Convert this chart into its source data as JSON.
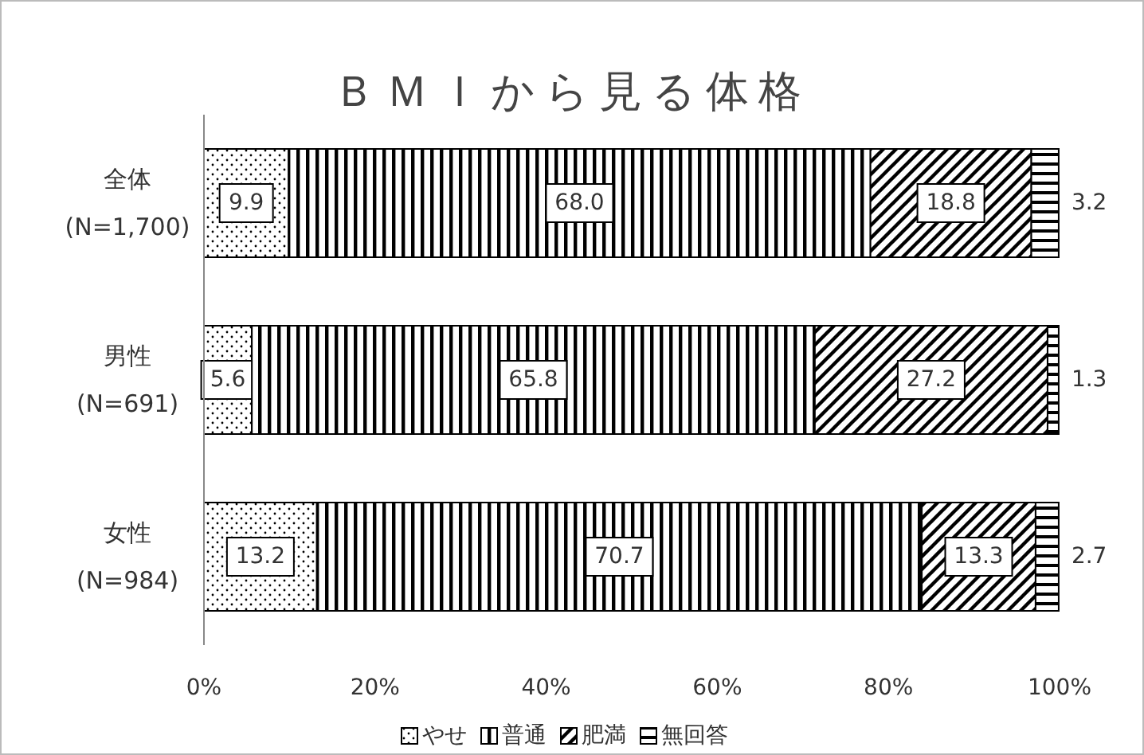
{
  "chart_data": {
    "type": "bar",
    "title": "ＢＭＩから見る体格",
    "orientation": "horizontal",
    "stacked": true,
    "categories": [
      "全体 (N=1,700)",
      "男性 (N=691)",
      "女性 (N=984)"
    ],
    "series": [
      {
        "name": "やせ",
        "color": "#000000",
        "values": [
          9.9,
          5.6,
          13.2
        ],
        "value_labels": [
          "9.9",
          "5.6",
          "13.2"
        ]
      },
      {
        "name": "普通",
        "color": "#000000",
        "values": [
          68.0,
          65.8,
          70.7
        ],
        "value_labels": [
          "68.0",
          "65.8",
          "70.7"
        ]
      },
      {
        "name": "肥満",
        "color": "#000000",
        "values": [
          18.8,
          27.2,
          13.3
        ],
        "value_labels": [
          "18.8",
          "27.2",
          "13.3"
        ]
      },
      {
        "name": "無回答",
        "color": "#000000",
        "values": [
          3.2,
          1.3,
          2.7
        ],
        "value_labels": [
          "3.2",
          "1.3",
          "2.7"
        ]
      }
    ],
    "xlim": [
      0,
      100
    ],
    "xticks": [
      {
        "value": 0,
        "label": "0%"
      },
      {
        "value": 20,
        "label": "20%"
      },
      {
        "value": 40,
        "label": "40%"
      },
      {
        "value": 60,
        "label": "60%"
      },
      {
        "value": 80,
        "label": "80%"
      },
      {
        "value": 100,
        "label": "100%"
      }
    ],
    "legend": "bottom"
  }
}
